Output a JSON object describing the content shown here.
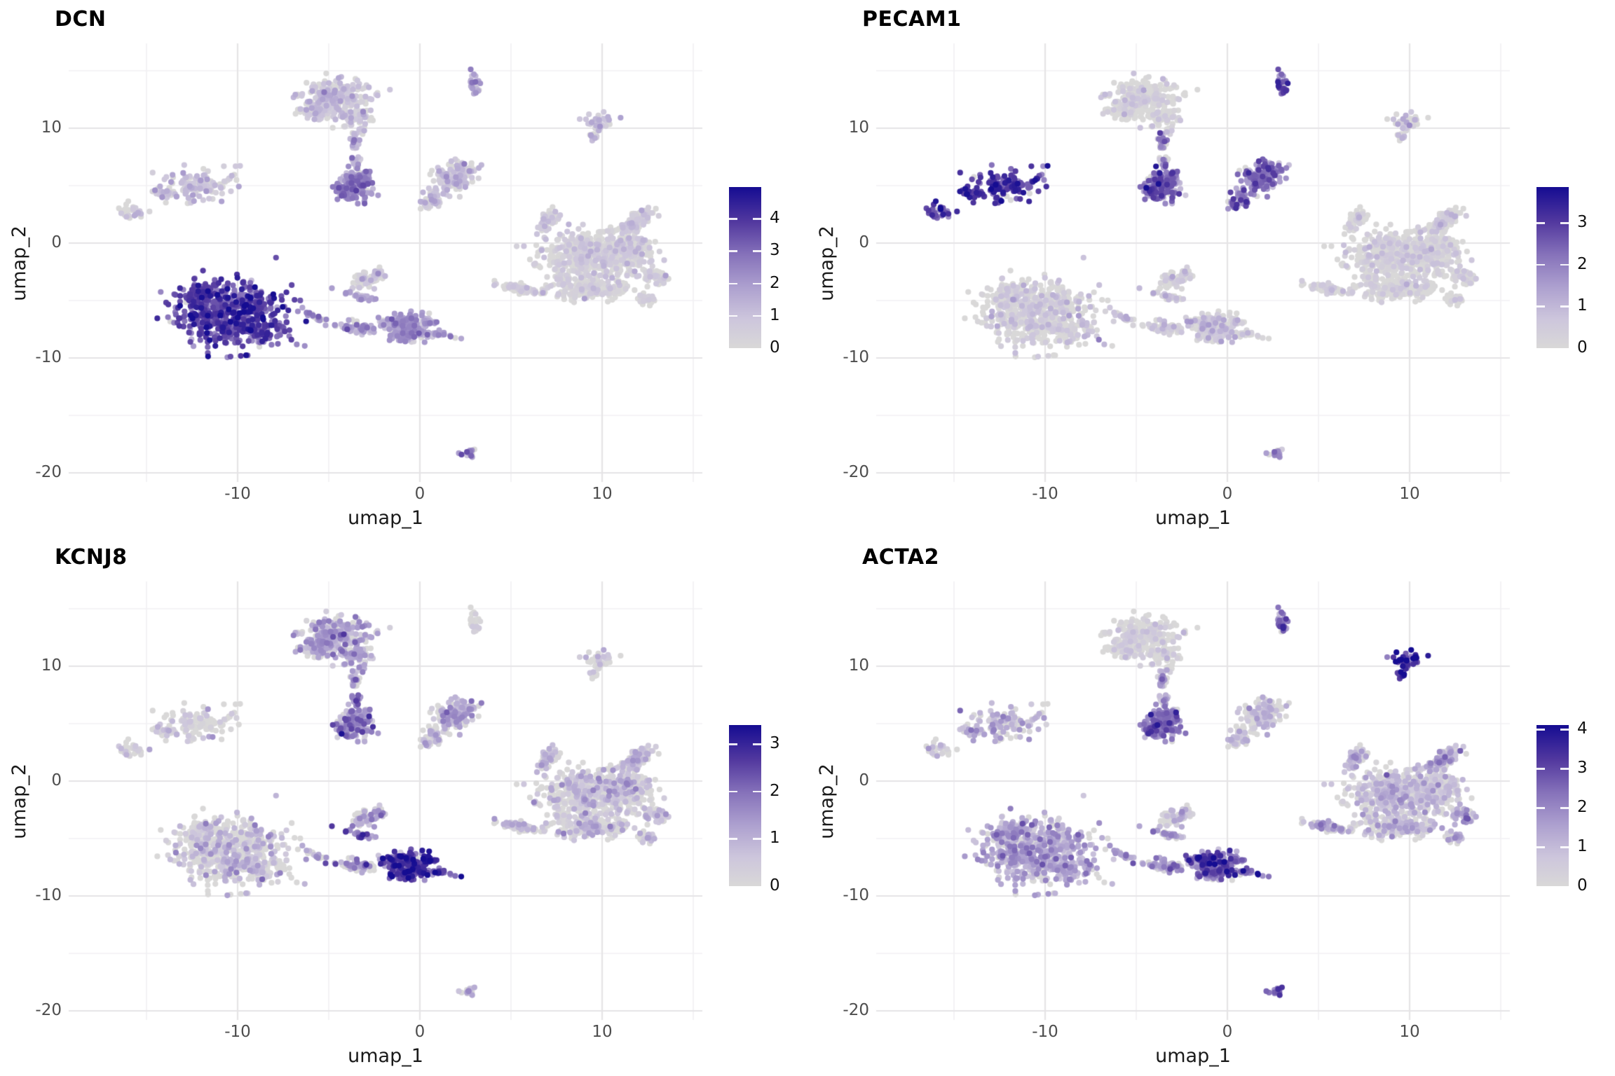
{
  "figure": {
    "background": "#ffffff",
    "kind": "single-cell UMAP feature plots, 2x2 grid"
  },
  "axes": {
    "x_label": "umap_1",
    "y_label": "umap_2",
    "x_tick_labels": [
      "-10",
      "0",
      "10"
    ],
    "y_tick_labels": [
      "10",
      "0",
      "-10",
      "-20"
    ]
  },
  "chart_data": {
    "type": "scatter",
    "embedding": "UMAP",
    "grid": true,
    "legend_position": "right",
    "x_range": [
      -19.3,
      15.5
    ],
    "y_range": [
      -20.8,
      17.4
    ],
    "x_tick_values": [
      -10,
      0,
      10
    ],
    "y_tick_values": [
      10,
      0,
      -10,
      -20
    ],
    "x_minor_tick_values": [
      -15,
      -5,
      5,
      15
    ],
    "y_minor_tick_values": [
      15,
      5,
      -5,
      -15
    ],
    "major_grid_color": "#e5e4e6",
    "minor_grid_color": "#f2f1f3",
    "point_radius_px": 4.1,
    "color_gradient": [
      [
        0.0,
        "#d9d8d8"
      ],
      [
        0.18,
        "#cdc6dc"
      ],
      [
        0.38,
        "#ada0cf"
      ],
      [
        0.58,
        "#8672ba"
      ],
      [
        0.78,
        "#53399f"
      ],
      [
        1.0,
        "#150c92"
      ]
    ],
    "panels": [
      {
        "gene": "DCN",
        "colorbar_ticks": [
          4,
          3,
          2,
          1,
          0
        ],
        "scale_max": 4.98
      },
      {
        "gene": "PECAM1",
        "colorbar_ticks": [
          3,
          2,
          1,
          0
        ],
        "scale_max": 3.86
      },
      {
        "gene": "KCNJ8",
        "colorbar_ticks": [
          3,
          2,
          1,
          0
        ],
        "scale_max": 3.4
      },
      {
        "gene": "ACTA2",
        "colorbar_ticks": [
          4,
          3,
          2,
          1,
          0
        ],
        "scale_max": 4.11
      }
    ],
    "clusters": [
      {
        "id": "myeloid-blob",
        "blobs": [
          [
            -4.6,
            12.7,
            1.9,
            1.4,
            0,
            230
          ],
          [
            -5.5,
            11.6,
            1.1,
            0.9,
            0,
            80
          ],
          [
            -3.6,
            10.9,
            0.95,
            1.0,
            0,
            70
          ]
        ]
      },
      {
        "id": "myeloid-neck",
        "blobs": [
          [
            -3.55,
            8.7,
            0.3,
            1.1,
            0,
            30
          ],
          [
            -3.5,
            7.0,
            0.24,
            0.75,
            0,
            16
          ]
        ]
      },
      {
        "id": "lymphoid-blob",
        "blobs": [
          [
            -3.5,
            5.1,
            0.95,
            1.35,
            0,
            170
          ],
          [
            -4.25,
            4.4,
            0.5,
            0.6,
            0,
            30
          ]
        ]
      },
      {
        "id": "tiny-top",
        "blobs": [
          [
            3.0,
            13.8,
            0.32,
            0.85,
            0,
            22
          ]
        ]
      },
      {
        "id": "teardrop",
        "blobs": [
          [
            1.9,
            5.8,
            1.05,
            1.5,
            -0.5,
            150
          ],
          [
            0.7,
            3.7,
            0.5,
            0.85,
            -0.6,
            45
          ]
        ]
      },
      {
        "id": "left-main",
        "blobs": [
          [
            -12.3,
            5.0,
            2.1,
            1.3,
            0.12,
            120
          ],
          [
            -13.9,
            4.2,
            0.7,
            0.5,
            0.3,
            22
          ]
        ]
      },
      {
        "id": "left-satellite",
        "blobs": [
          [
            -15.9,
            2.7,
            0.95,
            0.8,
            0.25,
            26
          ]
        ]
      },
      {
        "id": "fibroblast",
        "blobs": [
          [
            -10.3,
            -6.2,
            2.9,
            2.7,
            0,
            560
          ],
          [
            -12.1,
            -4.3,
            1.0,
            0.8,
            0,
            60
          ],
          [
            -8.7,
            -7.9,
            1.2,
            0.9,
            0,
            60
          ]
        ]
      },
      {
        "id": "bridge",
        "blobs": [
          [
            -5.7,
            -6.4,
            1.25,
            0.22,
            -0.62,
            20
          ]
        ]
      },
      {
        "id": "branch-body",
        "blobs": [
          [
            -2.9,
            -3.3,
            1.05,
            0.6,
            0.55,
            55
          ],
          [
            -2.2,
            -2.7,
            0.4,
            0.35,
            0,
            18
          ]
        ]
      },
      {
        "id": "branch-streak",
        "blobs": [
          [
            -3.3,
            -4.6,
            0.95,
            0.3,
            -0.35,
            32
          ]
        ]
      },
      {
        "id": "strip-left",
        "blobs": [
          [
            -3.5,
            -7.3,
            1.15,
            0.5,
            -0.12,
            70
          ]
        ]
      },
      {
        "id": "wedge",
        "blobs": [
          [
            -0.95,
            -6.9,
            1.1,
            0.75,
            0,
            115
          ],
          [
            -0.5,
            -7.85,
            1.35,
            0.55,
            0.18,
            90
          ],
          [
            1.5,
            -8.05,
            0.8,
            0.3,
            -0.3,
            14
          ]
        ]
      },
      {
        "id": "wedge-tip",
        "blobs": [
          [
            0.5,
            -6.9,
            0.4,
            0.35,
            0,
            20
          ]
        ]
      },
      {
        "id": "manta-core",
        "blobs": [
          [
            9.3,
            -1.2,
            2.6,
            2.2,
            0,
            500
          ],
          [
            11.5,
            -0.6,
            1.3,
            1.6,
            0,
            150
          ],
          [
            9.3,
            -3.9,
            2.3,
            0.95,
            0,
            170
          ]
        ]
      },
      {
        "id": "manta-arms",
        "blobs": [
          [
            11.9,
            1.95,
            1.35,
            0.45,
            0.72,
            110
          ],
          [
            7.0,
            1.9,
            0.9,
            0.5,
            0.95,
            55
          ],
          [
            5.6,
            -4.0,
            1.15,
            0.4,
            -0.33,
            70
          ],
          [
            13.0,
            -3.0,
            0.9,
            0.5,
            -0.5,
            50
          ],
          [
            12.4,
            -4.9,
            0.5,
            0.4,
            0,
            25
          ]
        ]
      },
      {
        "id": "star-right",
        "blobs": [
          [
            9.8,
            10.5,
            0.8,
            0.75,
            0,
            36
          ],
          [
            9.5,
            9.4,
            0.28,
            0.5,
            0,
            8
          ]
        ]
      },
      {
        "id": "bottom-tiny",
        "blobs": [
          [
            2.75,
            -18.3,
            0.42,
            0.48,
            0,
            17
          ]
        ]
      }
    ],
    "expression": {
      "DCN": {
        "myeloid-blob": [
          0.8,
          0.55,
          0.3
        ],
        "myeloid-neck": [
          1.2,
          0.6,
          0.2
        ],
        "lymphoid-blob": [
          2.1,
          0.7,
          0.05
        ],
        "tiny-top": [
          2.0,
          0.7,
          0.1
        ],
        "teardrop": [
          0.9,
          0.6,
          0.25
        ],
        "left-main": [
          0.9,
          0.65,
          0.25
        ],
        "left-satellite": [
          1.1,
          0.8,
          0.25
        ],
        "fibroblast": [
          3.4,
          0.8,
          0.02
        ],
        "bridge": [
          1.9,
          0.6,
          0.05
        ],
        "branch-body": [
          0.7,
          0.6,
          0.4
        ],
        "branch-streak": [
          1.6,
          0.6,
          0.1
        ],
        "strip-left": [
          1.5,
          0.7,
          0.15
        ],
        "wedge": [
          1.8,
          0.6,
          0.08
        ],
        "wedge-tip": [
          1.8,
          0.6,
          0.05
        ],
        "manta-core": [
          0.45,
          0.45,
          0.45
        ],
        "manta-arms": [
          0.5,
          0.5,
          0.4
        ],
        "star-right": [
          1.0,
          0.6,
          0.2
        ],
        "bottom-tiny": [
          2.1,
          0.6,
          0.1
        ]
      },
      "PECAM1": {
        "myeloid-blob": [
          0.25,
          0.35,
          0.6
        ],
        "myeloid-neck": [
          1.2,
          0.8,
          0.3
        ],
        "lymphoid-blob": [
          2.0,
          0.8,
          0.1
        ],
        "tiny-top": [
          2.7,
          0.6,
          0.05
        ],
        "teardrop": [
          1.9,
          0.75,
          0.08
        ],
        "left-main": [
          2.9,
          0.6,
          0.03
        ],
        "left-satellite": [
          2.8,
          0.7,
          0.05
        ],
        "fibroblast": [
          0.4,
          0.45,
          0.5
        ],
        "bridge": [
          0.5,
          0.5,
          0.4
        ],
        "branch-body": [
          0.3,
          0.4,
          0.6
        ],
        "branch-streak": [
          0.5,
          0.5,
          0.4
        ],
        "strip-left": [
          0.4,
          0.45,
          0.5
        ],
        "wedge": [
          0.5,
          0.5,
          0.45
        ],
        "wedge-tip": [
          0.6,
          0.5,
          0.4
        ],
        "manta-core": [
          0.3,
          0.35,
          0.55
        ],
        "manta-arms": [
          0.35,
          0.4,
          0.55
        ],
        "star-right": [
          0.55,
          0.5,
          0.4
        ],
        "bottom-tiny": [
          1.4,
          0.7,
          0.15
        ]
      },
      "KCNJ8": {
        "myeloid-blob": [
          1.0,
          0.6,
          0.22
        ],
        "myeloid-neck": [
          1.1,
          0.6,
          0.25
        ],
        "lymphoid-blob": [
          1.3,
          0.7,
          0.15
        ],
        "tiny-top": [
          0.4,
          0.4,
          0.5
        ],
        "teardrop": [
          0.8,
          0.6,
          0.3
        ],
        "left-main": [
          0.45,
          0.5,
          0.5
        ],
        "left-satellite": [
          0.5,
          0.5,
          0.5
        ],
        "fibroblast": [
          0.55,
          0.5,
          0.45
        ],
        "bridge": [
          1.1,
          0.6,
          0.3
        ],
        "branch-body": [
          0.8,
          0.6,
          0.35
        ],
        "branch-streak": [
          1.9,
          0.8,
          0.1
        ],
        "strip-left": [
          1.0,
          0.7,
          0.35
        ],
        "wedge": [
          2.3,
          0.7,
          0.04
        ],
        "wedge-tip": [
          3.1,
          0.3,
          0.0
        ],
        "manta-core": [
          0.5,
          0.5,
          0.45
        ],
        "manta-arms": [
          0.55,
          0.5,
          0.4
        ],
        "star-right": [
          0.5,
          0.45,
          0.45
        ],
        "bottom-tiny": [
          0.8,
          0.6,
          0.3
        ]
      },
      "ACTA2": {
        "myeloid-blob": [
          0.3,
          0.4,
          0.55
        ],
        "myeloid-neck": [
          1.2,
          0.7,
          0.25
        ],
        "lymphoid-blob": [
          2.1,
          0.7,
          0.08
        ],
        "tiny-top": [
          2.3,
          0.8,
          0.05
        ],
        "teardrop": [
          0.7,
          0.6,
          0.35
        ],
        "left-main": [
          0.9,
          0.7,
          0.3
        ],
        "left-satellite": [
          0.8,
          0.6,
          0.35
        ],
        "fibroblast": [
          1.25,
          0.6,
          0.15
        ],
        "bridge": [
          1.5,
          0.6,
          0.2
        ],
        "branch-body": [
          0.7,
          0.55,
          0.4
        ],
        "branch-streak": [
          1.3,
          0.7,
          0.2
        ],
        "strip-left": [
          1.3,
          0.7,
          0.2
        ],
        "wedge": [
          2.4,
          0.8,
          0.04
        ],
        "wedge-tip": [
          2.2,
          0.7,
          0.05
        ],
        "manta-core": [
          0.7,
          0.6,
          0.35
        ],
        "manta-arms": [
          1.0,
          0.7,
          0.3
        ],
        "star-right": [
          3.3,
          0.7,
          0.03
        ],
        "bottom-tiny": [
          1.8,
          0.7,
          0.1
        ]
      }
    }
  }
}
